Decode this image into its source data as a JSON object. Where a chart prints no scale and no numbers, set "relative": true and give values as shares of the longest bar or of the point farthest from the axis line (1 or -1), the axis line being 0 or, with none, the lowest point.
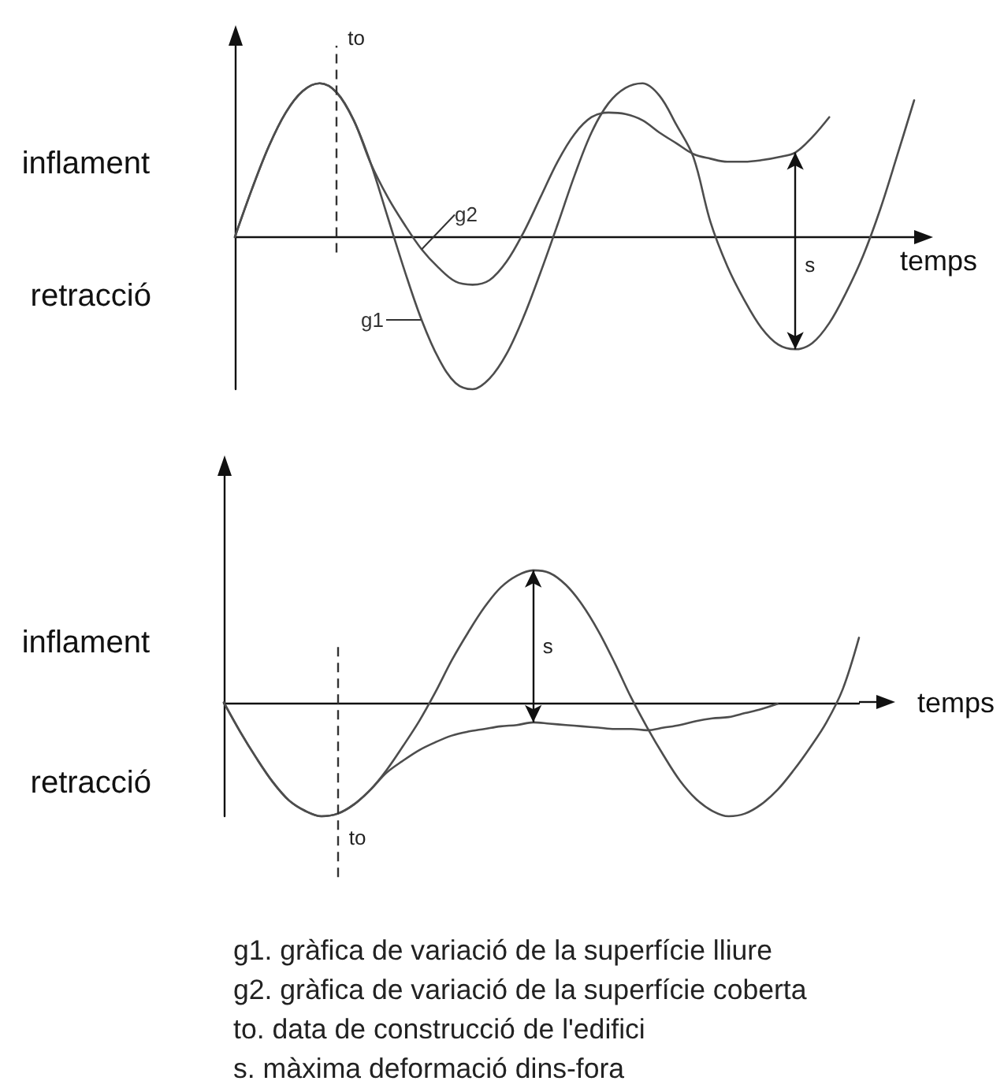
{
  "chart_data": [
    {
      "type": "line",
      "xlabel": "temps",
      "relative": true,
      "marker": "none",
      "categories": [
        null,
        null,
        null,
        null,
        null,
        null,
        null,
        null,
        null,
        null,
        null,
        null,
        null,
        null,
        null,
        null,
        null,
        null,
        null,
        null,
        null,
        null,
        null,
        null,
        null,
        null,
        null,
        null,
        null,
        null,
        null,
        null,
        null,
        null,
        null,
        null,
        null,
        null,
        null,
        null,
        null
      ],
      "series": [
        {
          "name": "g1",
          "color": "#4d4d4d",
          "values": [
            0,
            0.31,
            0.59,
            0.81,
            0.95,
            1.0,
            0.94,
            0.76,
            0.48,
            0.13,
            -0.22,
            -0.54,
            -0.79,
            -0.95,
            -0.99,
            -0.92,
            -0.76,
            -0.52,
            -0.23,
            0.08,
            0.4,
            0.68,
            0.87,
            0.97,
            1.0,
            0.92,
            0.73,
            0.52,
            0.1,
            -0.19,
            -0.41,
            -0.59,
            -0.7,
            -0.73,
            -0.69,
            -0.56,
            -0.36,
            -0.12,
            0.18,
            0.53,
            0.89
          ]
        },
        {
          "name": "g2",
          "color": "#4d4d4d",
          "values": [
            0,
            0.31,
            0.59,
            0.81,
            0.95,
            1.0,
            0.94,
            0.76,
            0.48,
            0.26,
            0.08,
            -0.08,
            -0.2,
            -0.29,
            -0.31,
            -0.28,
            -0.16,
            0.03,
            0.26,
            0.49,
            0.67,
            0.78,
            0.81,
            0.8,
            0.76,
            0.68,
            0.61,
            0.54,
            0.51,
            0.49,
            0.49,
            0.5,
            0.52,
            0.55,
            0.65,
            0.78,
            null,
            null,
            null,
            null,
            null
          ]
        }
      ],
      "annotations": [
        "inflament",
        "retracció",
        "to",
        "s"
      ]
    },
    {
      "type": "line",
      "xlabel": "temps",
      "relative": true,
      "marker": "none",
      "categories": [
        null,
        null,
        null,
        null,
        null,
        null,
        null,
        null,
        null,
        null,
        null,
        null,
        null,
        null,
        null,
        null,
        null,
        null,
        null,
        null,
        null,
        null,
        null,
        null,
        null,
        null,
        null,
        null,
        null,
        null,
        null,
        null,
        null,
        null,
        null,
        null,
        null,
        null,
        null,
        null
      ],
      "series": [
        {
          "color": "#4d4d4d",
          "values": [
            0,
            -0.22,
            -0.42,
            -0.6,
            -0.74,
            -0.82,
            -0.86,
            -0.84,
            -0.77,
            -0.66,
            -0.51,
            -0.33,
            -0.14,
            0.08,
            0.32,
            0.53,
            0.72,
            0.87,
            0.96,
            1.0,
            0.98,
            0.89,
            0.74,
            0.54,
            0.3,
            0.04,
            -0.19,
            -0.4,
            -0.59,
            -0.73,
            -0.82,
            -0.86,
            -0.84,
            -0.77,
            -0.66,
            -0.51,
            -0.34,
            -0.15,
            0.1,
            0.49
          ]
        },
        {
          "color": "#4d4d4d",
          "values": [
            0,
            -0.22,
            -0.42,
            -0.6,
            -0.74,
            -0.82,
            -0.86,
            -0.84,
            -0.77,
            -0.66,
            -0.53,
            -0.44,
            -0.36,
            -0.3,
            -0.25,
            -0.22,
            -0.2,
            -0.18,
            -0.17,
            -0.15,
            -0.16,
            -0.17,
            -0.18,
            -0.19,
            -0.2,
            -0.2,
            -0.21,
            -0.19,
            -0.17,
            -0.14,
            -0.12,
            -0.11,
            -0.08,
            -0.05,
            -0.01,
            null,
            null,
            null,
            null,
            null
          ]
        }
      ],
      "annotations": [
        "inflament",
        "retracció",
        "to",
        "s",
        "g1. gràfica de variació de la superfície lliure",
        "g2. gràfica de variació de la superfície coberta",
        "to. data de construcció de l'edifici",
        "s. màxima deformació dins-fora"
      ]
    }
  ]
}
